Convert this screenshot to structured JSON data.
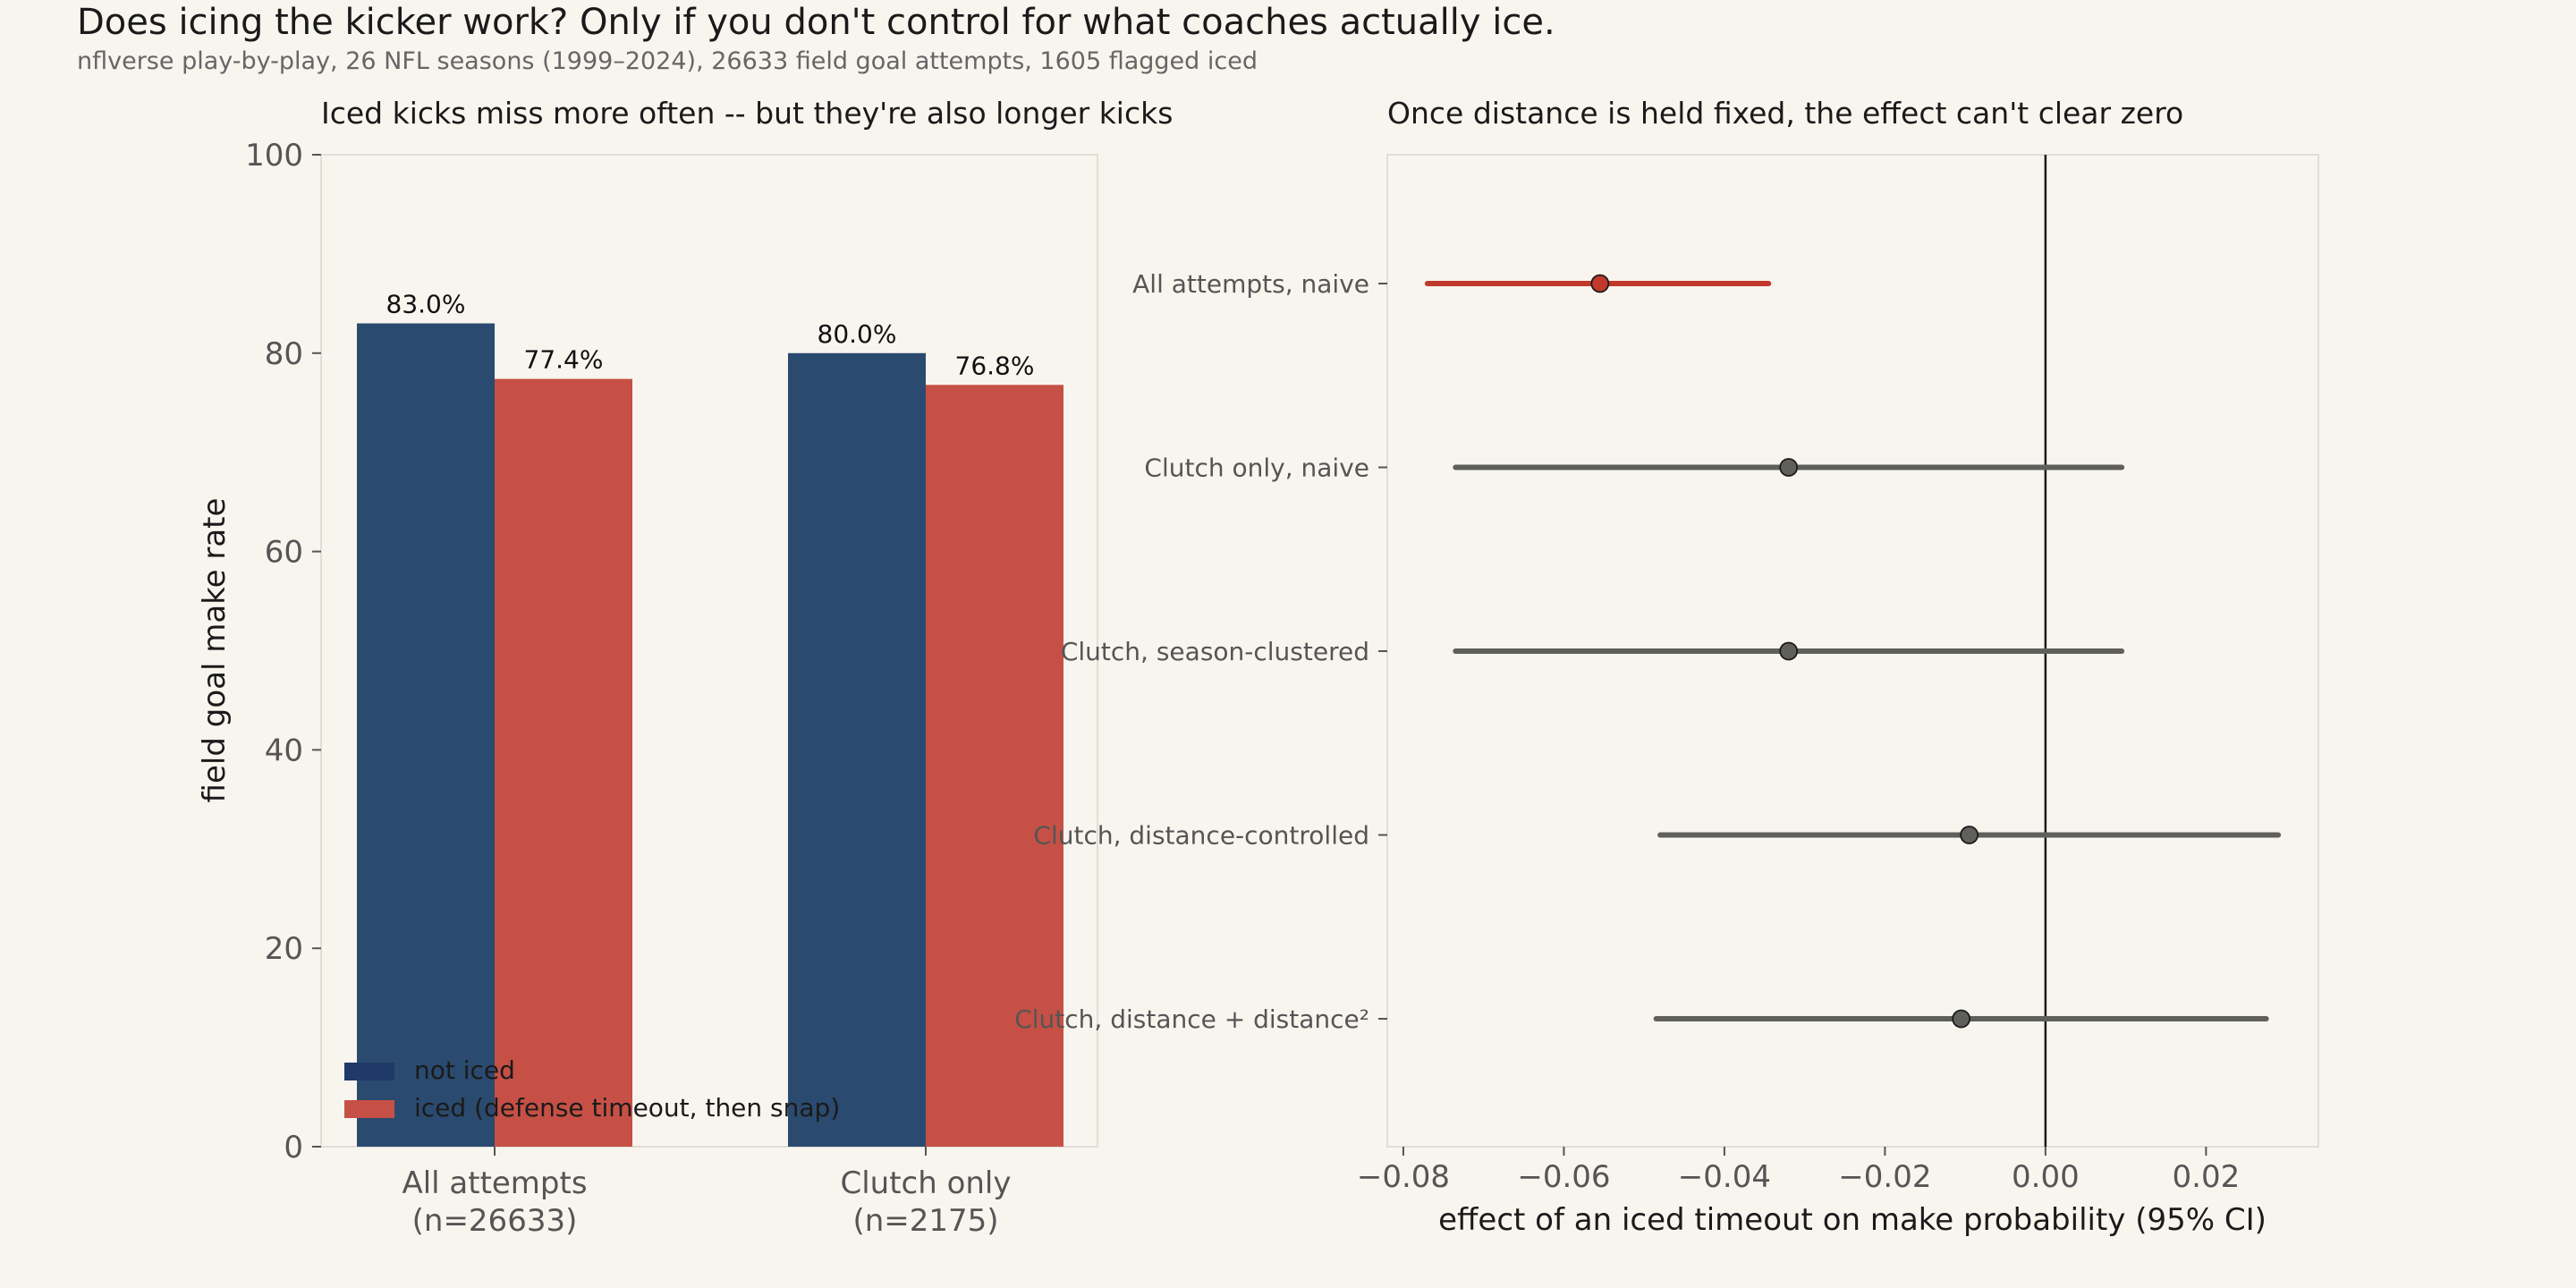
{
  "title": "Does icing the kicker work? Only if you don't control for what coaches actually ice.",
  "subtitle": "nflverse play-by-play, 26 NFL seasons (1999–2024), 26633 field goal attempts, 1605 flagged iced",
  "colors": {
    "background": "#f8f5ef",
    "not_iced": "#2b4a6f",
    "iced": "#c65045",
    "legend_not_iced": "#1f3a66",
    "highlight": "#c0392b",
    "neutral": "#5f5f5c",
    "axis_text": "#555555",
    "frame": "#e2ddd5"
  },
  "chart_data": [
    {
      "type": "bar",
      "title": "Iced kicks miss more often -- but they're also longer kicks",
      "ylabel": "field goal make rate",
      "xlabel": "",
      "ylim": [
        0,
        100
      ],
      "yticks": [
        0,
        20,
        40,
        60,
        80,
        100
      ],
      "categories": [
        "All attempts\n(n=26633)",
        "Clutch only\n(n=2175)"
      ],
      "series": [
        {
          "name": "not iced",
          "values": [
            83.0,
            80.0
          ],
          "labels": [
            "83.0%",
            "80.0%"
          ],
          "color_key": "not_iced"
        },
        {
          "name": "iced (defense timeout, then snap)",
          "values": [
            77.4,
            76.8
          ],
          "labels": [
            "77.4%",
            "76.8%"
          ],
          "color_key": "iced"
        }
      ],
      "legend": "lower-left",
      "grid": false
    },
    {
      "type": "scatter",
      "title": "Once distance is held fixed, the effect can't clear zero",
      "xlabel": "effect of an iced timeout on make probability (95% CI)",
      "xlim": [
        -0.082,
        0.034
      ],
      "xticks": [
        -0.08,
        -0.06,
        -0.04,
        -0.02,
        0.0,
        0.02
      ],
      "xtick_labels": [
        "−0.08",
        "−0.06",
        "−0.04",
        "−0.02",
        "0.00",
        "0.02"
      ],
      "reference_line": 0.0,
      "rows": [
        {
          "label": "All attempts, naive",
          "estimate": -0.0555,
          "ci": [
            -0.077,
            -0.0345
          ],
          "highlight": true
        },
        {
          "label": "Clutch only, naive",
          "estimate": -0.032,
          "ci": [
            -0.0735,
            0.0095
          ],
          "highlight": false
        },
        {
          "label": "Clutch, season-clustered",
          "estimate": -0.032,
          "ci": [
            -0.0735,
            0.0095
          ],
          "highlight": false
        },
        {
          "label": "Clutch, distance-controlled",
          "estimate": -0.0095,
          "ci": [
            -0.048,
            0.029
          ],
          "highlight": false
        },
        {
          "label": "Clutch, distance + distance²",
          "estimate": -0.0105,
          "ci": [
            -0.0485,
            0.0275
          ],
          "highlight": false
        }
      ],
      "grid": false
    }
  ]
}
